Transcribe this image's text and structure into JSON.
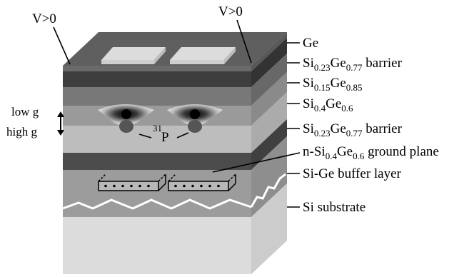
{
  "colors": {
    "ge_top": "#5f5f5f",
    "ge_front": "#6a6a6a",
    "ge_side": "#585858",
    "gate_top": "#dedede",
    "gate_edge": "#bdbdbd",
    "si023_barrier": "#3e3e3e",
    "si015": "#787878",
    "si04": "#9a9a9a",
    "si023_lower": "#bdbdbd",
    "ground_plane": "#4c4c4c",
    "buffer": "#9c9c9c",
    "substrate": "#dcdcdc",
    "label_text": "#000000",
    "leader_line": "#000000"
  },
  "icons": {
    "dot_glow": "radial-glow",
    "field_arrow": "up-down-arrow-icon",
    "ground_wire": "dotted-electrode-icon",
    "interface_line": "zigzag-icon"
  },
  "voltage_labels": {
    "left": "V>0",
    "right": "V>0"
  },
  "side_labels": {
    "low_g": "low g",
    "high_g": "high g"
  },
  "donor": {
    "mass_number": "31",
    "element": "P"
  },
  "layer_labels": {
    "ge": "Ge",
    "barrier_top": {
      "pre": "Si",
      "sub1": "0.23",
      "mid": "Ge",
      "sub2": "0.77",
      "post": " barrier"
    },
    "si015": {
      "pre": "Si",
      "sub1": "0.15",
      "mid": "Ge",
      "sub2": "0.85",
      "post": ""
    },
    "si04": {
      "pre": "Si",
      "sub1": "0.4",
      "mid": "Ge",
      "sub2": "0.6",
      "post": ""
    },
    "barrier_bottom": {
      "pre": "Si",
      "sub1": "0.23",
      "mid": "Ge",
      "sub2": "0.77",
      "post": " barrier"
    },
    "ground_plane": {
      "pre": "n-Si",
      "sub1": "0.4",
      "mid": "Ge",
      "sub2": "0.6",
      "post": " ground plane"
    },
    "buffer": "Si-Ge buffer layer",
    "substrate": "Si substrate"
  }
}
